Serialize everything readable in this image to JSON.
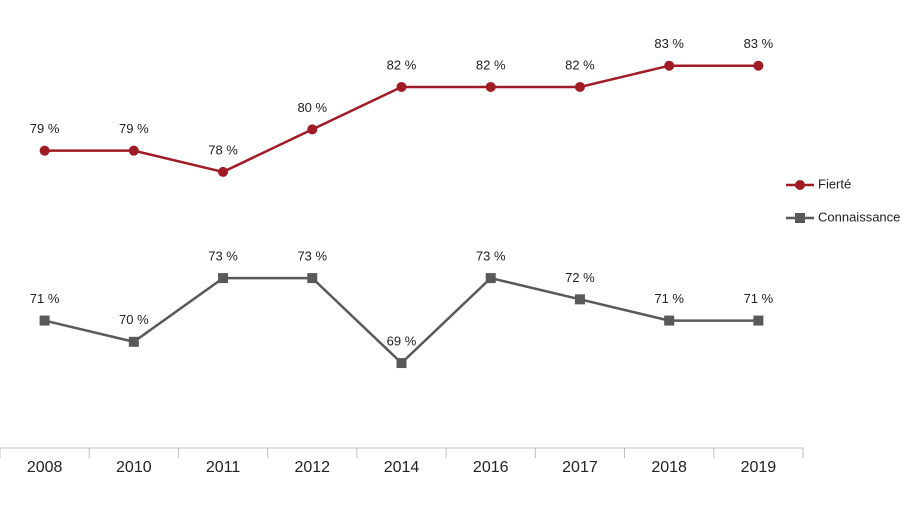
{
  "chart_data": {
    "type": "line",
    "categories": [
      "2008",
      "2010",
      "2011",
      "2012",
      "2014",
      "2016",
      "2017",
      "2018",
      "2019"
    ],
    "series": [
      {
        "name": "Fierté",
        "color": "#a01c25",
        "marker": "circle",
        "values": [
          79,
          79,
          78,
          80,
          82,
          82,
          82,
          83,
          83
        ],
        "value_labels": [
          "79 %",
          "79 %",
          "78 %",
          "80 %",
          "82 %",
          "82 %",
          "82 %",
          "83 %",
          "83 %"
        ]
      },
      {
        "name": "Connaissance",
        "color": "#595959",
        "marker": "square",
        "values": [
          71,
          70,
          73,
          73,
          69,
          73,
          72,
          71,
          71
        ],
        "value_labels": [
          "71 %",
          "70 %",
          "73 %",
          "73 %",
          "69 %",
          "73 %",
          "72 %",
          "71 %",
          "71 %"
        ]
      }
    ],
    "ylim": [
      65,
      86
    ],
    "legend": "right"
  }
}
